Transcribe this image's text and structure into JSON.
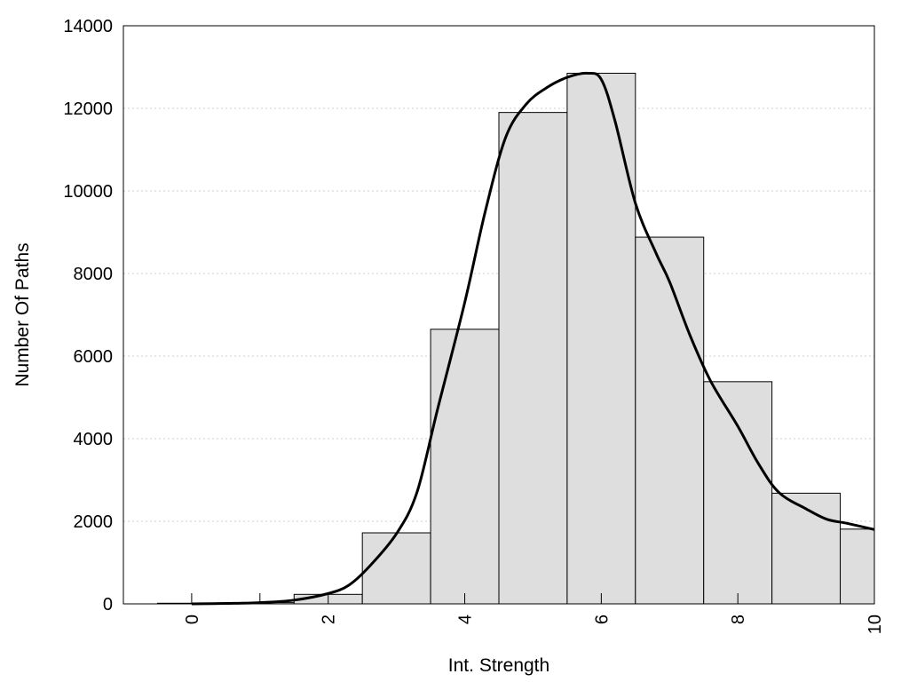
{
  "chart_data": {
    "type": "bar",
    "title": "",
    "xlabel": "Int. Strength",
    "ylabel": "Number Of Paths",
    "xlim": [
      -1,
      10
    ],
    "ylim": [
      0,
      14000
    ],
    "grid": "horizontal dotted",
    "x_ticks": [
      "0",
      "2",
      "4",
      "6",
      "8",
      "10"
    ],
    "y_ticks": [
      "0",
      "2000",
      "4000",
      "6000",
      "8000",
      "10000",
      "12000",
      "14000"
    ],
    "bar_centers": [
      0,
      1,
      2,
      3,
      4,
      5,
      6,
      7,
      8,
      9,
      10
    ],
    "bar_width": 1,
    "values": [
      15,
      30,
      230,
      1720,
      6650,
      11900,
      12850,
      8880,
      5380,
      2680,
      1810
    ],
    "fit_curve": {
      "x": [
        0,
        0.5,
        1,
        1.5,
        2,
        2.3,
        2.6,
        3,
        3.3,
        3.6,
        4,
        4.3,
        4.6,
        4.9,
        5.2,
        5.5,
        5.8,
        6,
        6.2,
        6.5,
        6.8,
        7,
        7.3,
        7.6,
        8,
        8.3,
        8.6,
        9,
        9.3,
        9.6,
        10
      ],
      "y": [
        0,
        10,
        30,
        90,
        250,
        450,
        900,
        1700,
        2700,
        4700,
        7300,
        9500,
        11300,
        12100,
        12500,
        12750,
        12850,
        12700,
        11700,
        9700,
        8500,
        7800,
        6500,
        5400,
        4300,
        3400,
        2700,
        2300,
        2050,
        1950,
        1800
      ]
    }
  }
}
